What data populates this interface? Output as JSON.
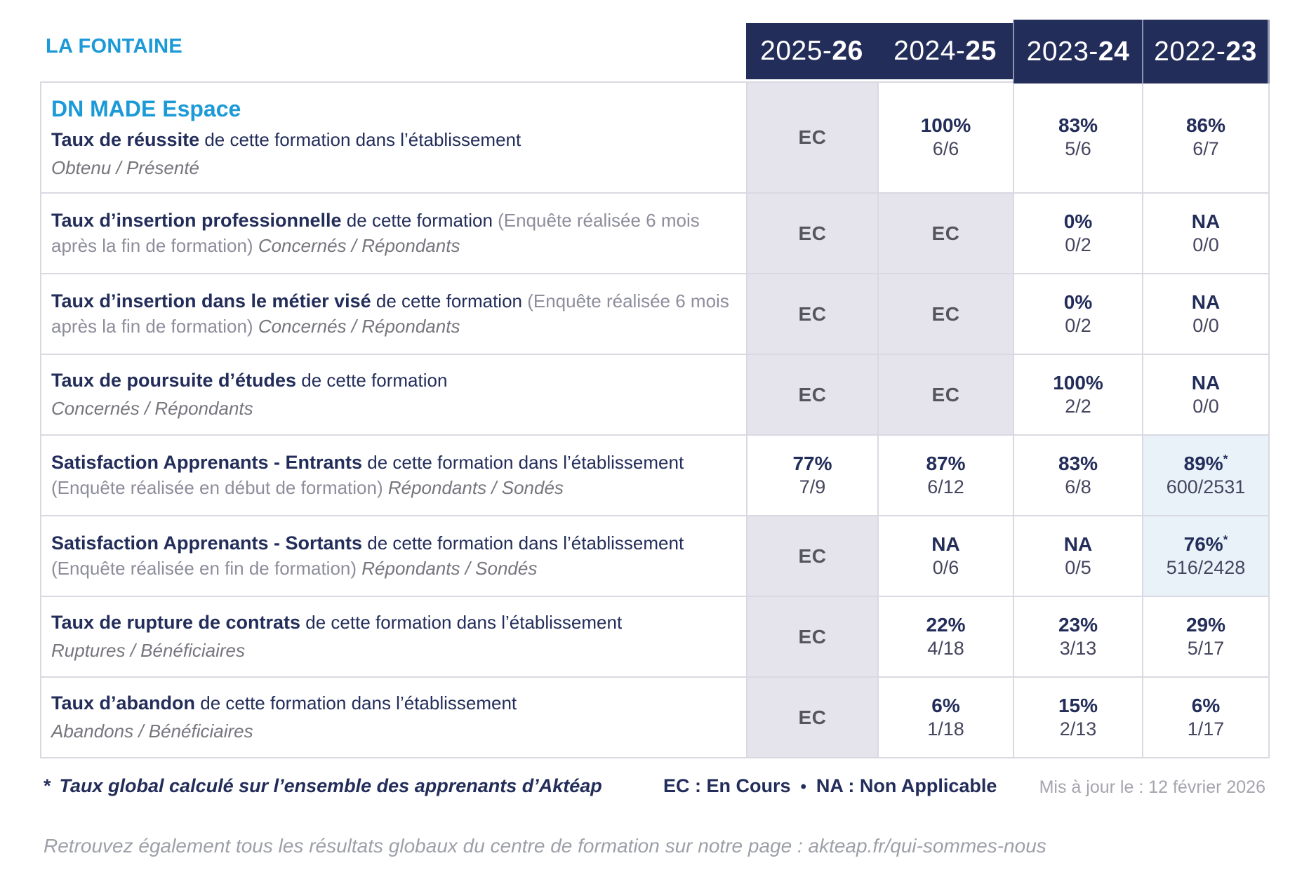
{
  "brand": {
    "name": "LA FONTAINE"
  },
  "columns": [
    {
      "prefix": "2025-",
      "bold": "26"
    },
    {
      "prefix": "2024-",
      "bold": "25"
    },
    {
      "prefix": "2023-",
      "bold": "24"
    },
    {
      "prefix": "2022-",
      "bold": "23"
    }
  ],
  "rows": [
    {
      "program": "DN MADE Espace",
      "title": "Taux de réussite",
      "desc": " de cette formation dans l’établissement",
      "paren": "",
      "tail": "Obtenu / Présenté",
      "tail_block": true,
      "values": [
        {
          "main": "EC",
          "type": "ec"
        },
        {
          "main": "100%",
          "frac": "6/6"
        },
        {
          "main": "83%",
          "frac": "5/6"
        },
        {
          "main": "86%",
          "frac": "6/7"
        }
      ]
    },
    {
      "title": "Taux d’insertion professionnelle",
      "desc": " de cette formation ",
      "paren": "(Enquête réalisée 6 mois après la fin de formation) ",
      "tail": "Concernés / Répondants",
      "tail_block": false,
      "values": [
        {
          "main": "EC",
          "type": "ec"
        },
        {
          "main": "EC",
          "type": "ec"
        },
        {
          "main": "0%",
          "frac": "0/2"
        },
        {
          "main": "NA",
          "frac": "0/0"
        }
      ]
    },
    {
      "title": "Taux d’insertion dans le métier visé",
      "desc": " de cette formation ",
      "paren": "(Enquête réalisée 6 mois après la fin de formation) ",
      "tail": "Concernés / Répondants",
      "tail_block": false,
      "values": [
        {
          "main": "EC",
          "type": "ec"
        },
        {
          "main": "EC",
          "type": "ec"
        },
        {
          "main": "0%",
          "frac": "0/2"
        },
        {
          "main": "NA",
          "frac": "0/0"
        }
      ]
    },
    {
      "title": "Taux de poursuite d’études",
      "desc": " de cette formation",
      "paren": "",
      "tail": "Concernés / Répondants",
      "tail_block": true,
      "values": [
        {
          "main": "EC",
          "type": "ec"
        },
        {
          "main": "EC",
          "type": "ec"
        },
        {
          "main": "100%",
          "frac": "2/2"
        },
        {
          "main": "NA",
          "frac": "0/0"
        }
      ]
    },
    {
      "title": "Satisfaction Apprenants - Entrants",
      "desc": " de cette formation dans l’établissement ",
      "paren": "(Enquête réalisée en début de formation) ",
      "tail": "Répondants / Sondés",
      "tail_block": false,
      "values": [
        {
          "main": "77%",
          "frac": "7/9"
        },
        {
          "main": "87%",
          "frac": "6/12"
        },
        {
          "main": "83%",
          "frac": "6/8"
        },
        {
          "main": "89%",
          "frac": "600/2531",
          "star": true
        }
      ]
    },
    {
      "title": "Satisfaction Apprenants - Sortants",
      "desc": " de cette formation dans l’établissement ",
      "paren": "(Enquête réalisée en fin de formation) ",
      "tail": "Répondants / Sondés",
      "tail_block": false,
      "values": [
        {
          "main": "EC",
          "type": "ec"
        },
        {
          "main": "NA",
          "frac": "0/6"
        },
        {
          "main": "NA",
          "frac": "0/5"
        },
        {
          "main": "76%",
          "frac": "516/2428",
          "star": true
        }
      ]
    },
    {
      "title": "Taux de rupture de contrats",
      "desc": " de cette formation dans l’établissement",
      "paren": "",
      "tail": "Ruptures / Bénéficiaires",
      "tail_block": true,
      "values": [
        {
          "main": "EC",
          "type": "ec"
        },
        {
          "main": "22%",
          "frac": "4/18"
        },
        {
          "main": "23%",
          "frac": "3/13"
        },
        {
          "main": "29%",
          "frac": "5/17"
        }
      ]
    },
    {
      "title": "Taux d’abandon",
      "desc": " de cette formation dans l’établissement",
      "paren": "",
      "tail": "Abandons / Bénéficiaires",
      "tail_block": true,
      "values": [
        {
          "main": "EC",
          "type": "ec"
        },
        {
          "main": "6%",
          "frac": "1/18"
        },
        {
          "main": "15%",
          "frac": "2/13"
        },
        {
          "main": "6%",
          "frac": "1/17"
        }
      ]
    }
  ],
  "footer": {
    "footnote_star": "*",
    "footnote": "Taux global calculé sur l’ensemble des apprenants d’Aktéap",
    "legend_ec": "EC : En Cours",
    "bullet": "•",
    "legend_na": "NA : Non Applicable",
    "updated": "Mis à jour le : 12 février 2026"
  },
  "bottom_note": "Retrouvez également tous les résultats globaux du centre de formation sur notre page : akteap.fr/qui-sommes-nous",
  "colors": {
    "accent_blue": "#1b9ad7",
    "navy": "#232d5a",
    "gray_text": "#75757d",
    "paren_gray": "#8d8d9c",
    "ec_text": "#55555c",
    "fraction": "#45455f",
    "lavender_cell": "#e5e4ed",
    "light_blue_cell": "#e9f2f9",
    "border": "#d9d9e2",
    "updated_gray": "#a5a5ad",
    "bottom_gray": "#9da0a8"
  }
}
